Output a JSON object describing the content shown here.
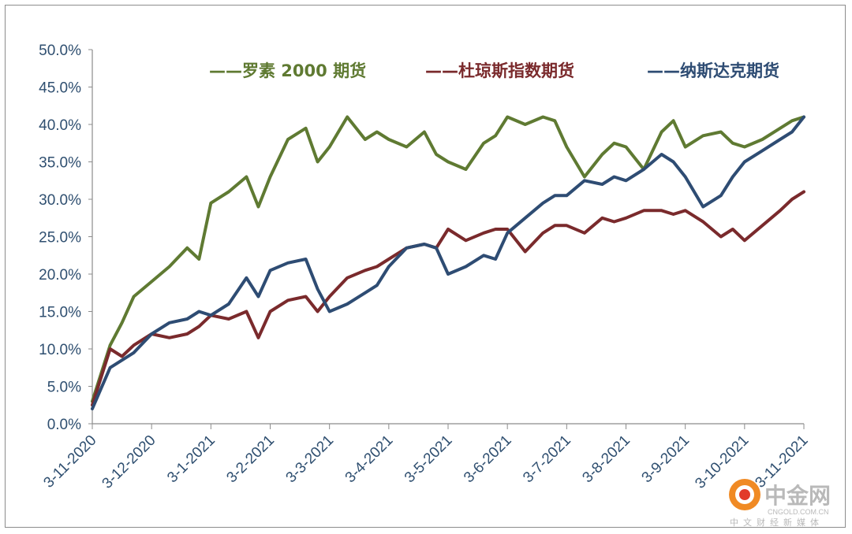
{
  "chart_data": {
    "type": "line",
    "title": "",
    "xlabel": "",
    "ylabel": "",
    "ylim": [
      0,
      0.5
    ],
    "y_ticks": [
      "0.0%",
      "5.0%",
      "10.0%",
      "15.0%",
      "20.0%",
      "25.0%",
      "30.0%",
      "35.0%",
      "40.0%",
      "45.0%",
      "50.0%"
    ],
    "x_ticks": [
      "3-11-2020",
      "3-12-2020",
      "3-1-2021",
      "3-2-2021",
      "3-3-2021",
      "3-4-2021",
      "3-5-2021",
      "3-6-2021",
      "3-7-2021",
      "3-8-2021",
      "3-9-2021",
      "3-10-2021",
      "3-11-2021"
    ],
    "grid": false,
    "legend_position": "top",
    "x_month_index": [
      0,
      0.3,
      0.5,
      0.7,
      1,
      1.3,
      1.6,
      1.8,
      2,
      2.3,
      2.6,
      2.8,
      3,
      3.3,
      3.6,
      3.8,
      4,
      4.3,
      4.6,
      4.8,
      5,
      5.3,
      5.6,
      5.8,
      6,
      6.3,
      6.6,
      6.8,
      7,
      7.3,
      7.6,
      7.8,
      8,
      8.3,
      8.6,
      8.8,
      9,
      9.3,
      9.6,
      9.8,
      10,
      10.3,
      10.6,
      10.8,
      11,
      11.3,
      11.6,
      11.8,
      12
    ],
    "series": [
      {
        "name": "——罗素 2000 期货",
        "color": "#5f7a32",
        "values": [
          0.03,
          0.105,
          0.135,
          0.17,
          0.19,
          0.21,
          0.235,
          0.22,
          0.295,
          0.31,
          0.33,
          0.29,
          0.33,
          0.38,
          0.395,
          0.35,
          0.37,
          0.41,
          0.38,
          0.39,
          0.38,
          0.37,
          0.39,
          0.36,
          0.35,
          0.34,
          0.375,
          0.385,
          0.41,
          0.4,
          0.41,
          0.405,
          0.37,
          0.33,
          0.36,
          0.375,
          0.37,
          0.34,
          0.39,
          0.405,
          0.37,
          0.385,
          0.39,
          0.375,
          0.37,
          0.38,
          0.395,
          0.405,
          0.41
        ]
      },
      {
        "name": "——杜琼斯指数期货",
        "color": "#7a2a2c",
        "values": [
          0.025,
          0.1,
          0.09,
          0.105,
          0.12,
          0.115,
          0.12,
          0.13,
          0.145,
          0.14,
          0.15,
          0.115,
          0.15,
          0.165,
          0.17,
          0.15,
          0.17,
          0.195,
          0.205,
          0.21,
          0.22,
          0.235,
          0.24,
          0.235,
          0.26,
          0.245,
          0.255,
          0.26,
          0.26,
          0.23,
          0.255,
          0.265,
          0.265,
          0.255,
          0.275,
          0.27,
          0.275,
          0.285,
          0.285,
          0.28,
          0.285,
          0.27,
          0.25,
          0.26,
          0.245,
          0.265,
          0.285,
          0.3,
          0.31
        ]
      },
      {
        "name": "——纳斯达克期货",
        "color": "#2e4c73",
        "values": [
          0.02,
          0.075,
          0.085,
          0.095,
          0.12,
          0.135,
          0.14,
          0.15,
          0.145,
          0.16,
          0.195,
          0.17,
          0.205,
          0.215,
          0.22,
          0.18,
          0.15,
          0.16,
          0.175,
          0.185,
          0.21,
          0.235,
          0.24,
          0.235,
          0.2,
          0.21,
          0.225,
          0.22,
          0.255,
          0.275,
          0.295,
          0.305,
          0.305,
          0.325,
          0.32,
          0.33,
          0.325,
          0.34,
          0.36,
          0.35,
          0.33,
          0.29,
          0.305,
          0.33,
          0.35,
          0.365,
          0.38,
          0.39,
          0.41
        ]
      }
    ]
  },
  "watermark": {
    "cn": "中金网",
    "en": "CNGOLD.COM.CN",
    "sub": "中文财经新媒体"
  }
}
